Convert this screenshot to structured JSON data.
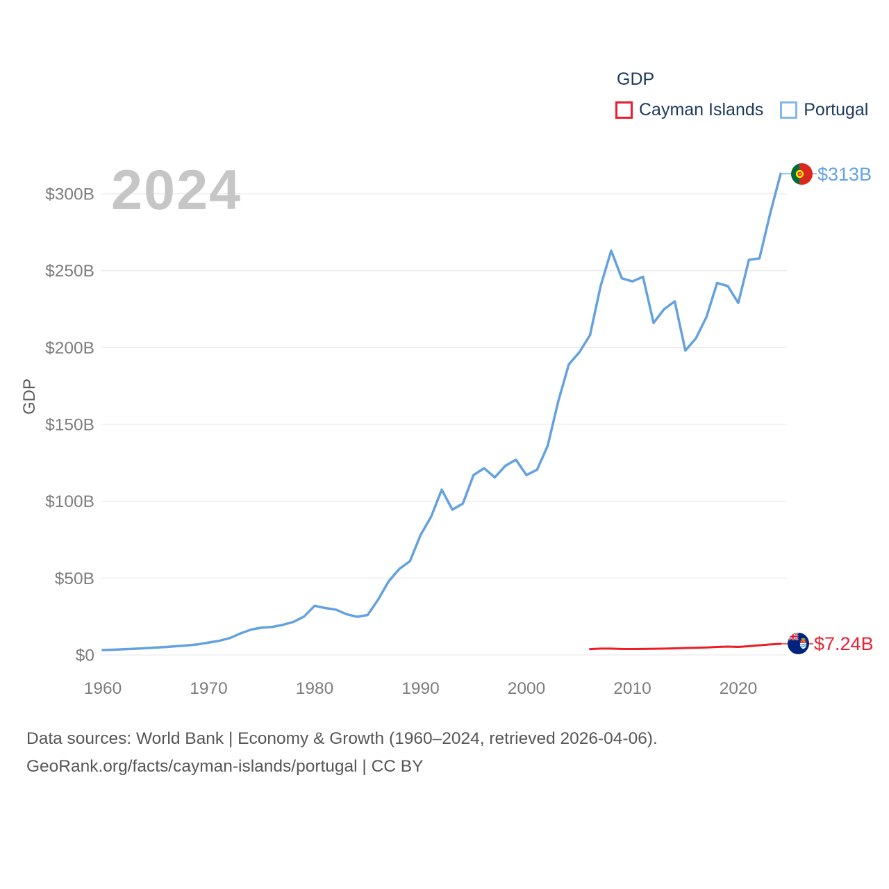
{
  "legend": {
    "title": "GDP",
    "items": [
      {
        "label": "Cayman Islands",
        "color": "#ed1c2e"
      },
      {
        "label": "Portugal",
        "color": "#85b7ea"
      }
    ]
  },
  "chart": {
    "watermark": "2024",
    "y_axis_label": "GDP"
  },
  "chart_data": {
    "type": "line",
    "title": "GDP",
    "xlabel": "",
    "ylabel": "GDP",
    "grid": true,
    "legend_position": "top-right",
    "x_range": [
      1960,
      2024
    ],
    "y_range_billions_usd": [
      0,
      313
    ],
    "x_ticks": [
      1960,
      1970,
      1980,
      1990,
      2000,
      2010,
      2020
    ],
    "y_ticks": [
      {
        "v": 0,
        "label": "$0"
      },
      {
        "v": 50,
        "label": "$50B"
      },
      {
        "v": 100,
        "label": "$100B"
      },
      {
        "v": 150,
        "label": "$150B"
      },
      {
        "v": 200,
        "label": "$200B"
      },
      {
        "v": 250,
        "label": "$250B"
      },
      {
        "v": 300,
        "label": "$300B"
      }
    ],
    "series": [
      {
        "name": "Portugal",
        "color": "#63a1e0",
        "start_year": 1960,
        "end_year": 2024,
        "end_label": "$313B",
        "values_billion_usd": [
          3.2,
          3.4,
          3.7,
          4.0,
          4.4,
          4.8,
          5.2,
          5.7,
          6.2,
          6.9,
          8.1,
          9.2,
          11.0,
          14.0,
          16.5,
          17.8,
          18.2,
          19.6,
          21.5,
          25.0,
          32.0,
          30.5,
          29.5,
          26.5,
          24.8,
          26.0,
          36.0,
          48.0,
          56.0,
          61.0,
          78.0,
          90.0,
          107.5,
          94.5,
          98.5,
          117.0,
          121.5,
          115.5,
          123.0,
          127.0,
          117.0,
          120.5,
          136.0,
          165.0,
          189.0,
          197.0,
          208.0,
          240.0,
          263.0,
          245.0,
          243.0,
          246.0,
          216.0,
          225.0,
          230.0,
          198.0,
          206.0,
          220.0,
          242.0,
          240.0,
          229.0,
          257.0,
          258.0,
          287.0,
          313.0
        ]
      },
      {
        "name": "Cayman Islands",
        "color": "#ed1c24",
        "start_year": 2006,
        "end_year": 2024,
        "end_label": "$7.24B",
        "values_billion_usd": [
          3.8,
          4.1,
          4.1,
          3.9,
          3.85,
          3.9,
          4.0,
          4.1,
          4.3,
          4.5,
          4.7,
          4.9,
          5.2,
          5.4,
          5.2,
          5.7,
          6.3,
          6.8,
          7.24
        ]
      }
    ]
  },
  "footer": {
    "line1": "Data sources: World Bank | Economy & Growth (1960–2024, retrieved 2026-04-06).",
    "line2": "GeoRank.org/facts/cayman-islands/portugal | CC BY"
  }
}
